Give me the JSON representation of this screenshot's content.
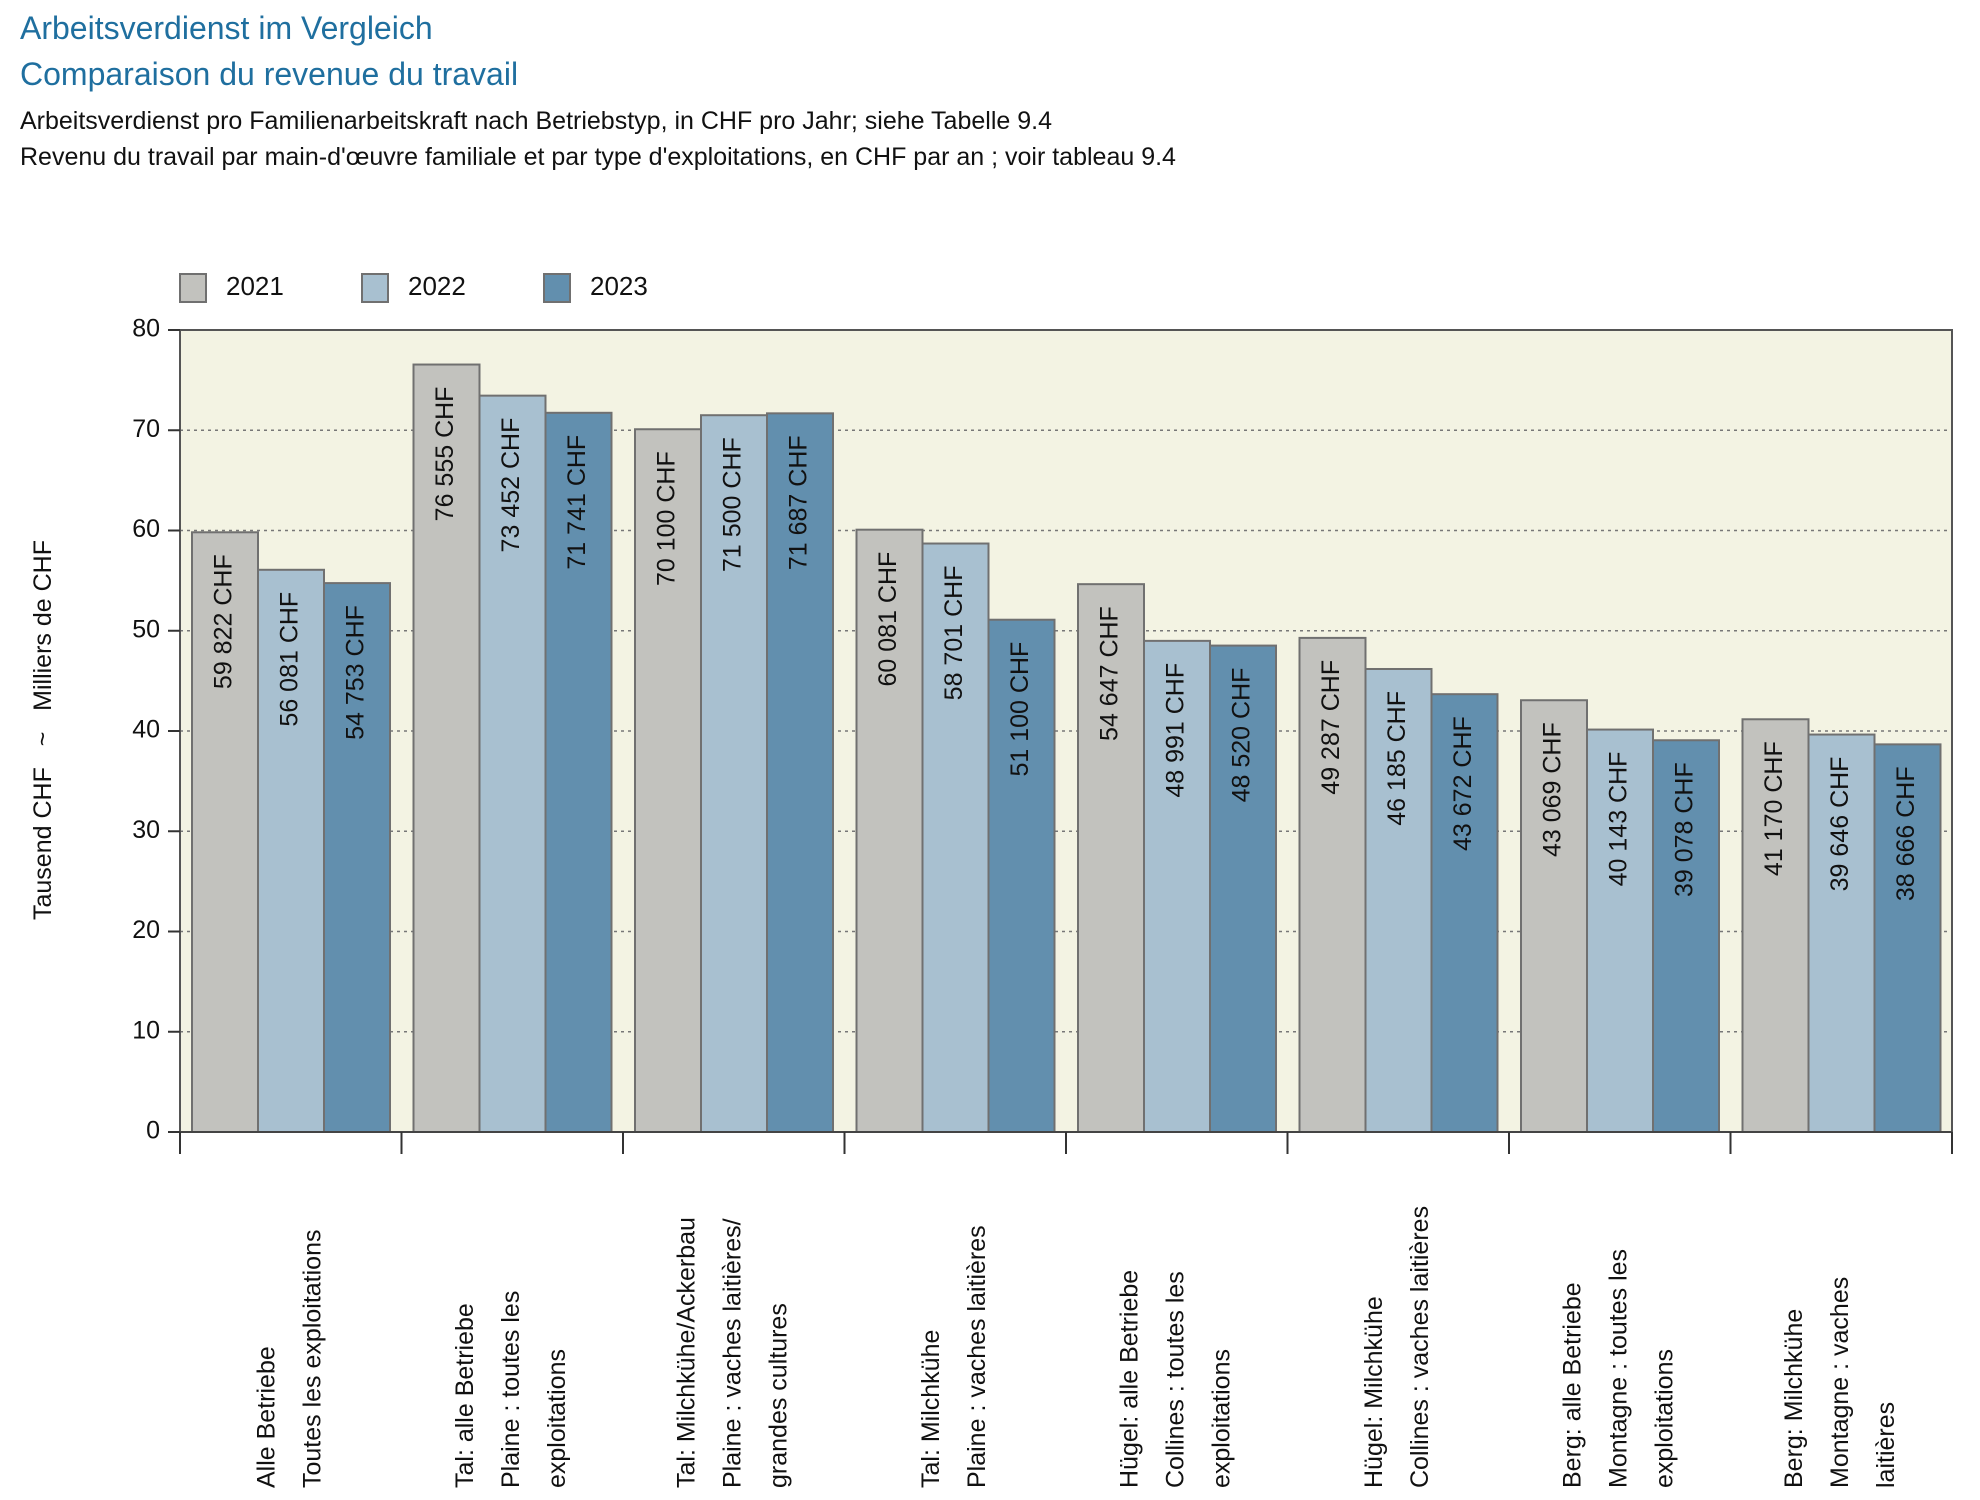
{
  "titles": {
    "line1": "Arbeitsverdienst im Vergleich",
    "line2": "Comparaison du revenue du travail"
  },
  "subtitles": {
    "line1": "Arbeitsverdienst pro Familienarbeitskraft nach Betriebstyp, in CHF pro Jahr; siehe Tabelle 9.4",
    "line2": "Revenu du travail par main-d'œuvre familiale et par type d'exploitations, en CHF par an ; voir tableau 9.4"
  },
  "colors": {
    "2021": "#c2c2be",
    "2022": "#a8c0d0",
    "2023": "#628fae",
    "plot_bg": "#f3f3e3",
    "title": "#1f6f9f"
  },
  "chart_data": {
    "type": "bar",
    "ylabel_de": "Tausend CHF",
    "ylabel_sep": "~",
    "ylabel_fr": "Milliers de CHF",
    "ylim": [
      0,
      80
    ],
    "yticks": [
      0,
      10,
      20,
      30,
      40,
      50,
      60,
      70,
      80
    ],
    "grid": "horizontal dotted",
    "legend_position": "top-left",
    "categories": [
      [
        "Alle Betriebe",
        "Toutes les exploitations"
      ],
      [
        "Tal: alle Betriebe",
        "Plaine : toutes les",
        "exploitations"
      ],
      [
        "Tal:  Milchkühe/Ackerbau",
        "Plaine : vaches laitières/",
        "grandes cultures"
      ],
      [
        "Tal:  Milchkühe",
        "Plaine : vaches laitières"
      ],
      [
        "Hügel: alle Betriebe",
        "Collines : toutes les",
        "exploitations"
      ],
      [
        "Hügel: Milchkühe",
        "Collines : vaches laitières"
      ],
      [
        "Berg: alle Betriebe",
        "Montagne : toutes les",
        "exploitations"
      ],
      [
        "Berg: Milchkühe",
        "Montagne : vaches",
        "laitières"
      ]
    ],
    "series": [
      {
        "name": "2021",
        "values": [
          59.822,
          76.555,
          70.1,
          60.081,
          54.647,
          49.287,
          43.069,
          41.17
        ],
        "labels": [
          "59 822 CHF",
          "76 555 CHF",
          "70 100 CHF",
          "60 081 CHF",
          "54 647 CHF",
          "49 287 CHF",
          "43 069 CHF",
          "41 170 CHF"
        ]
      },
      {
        "name": "2022",
        "values": [
          56.081,
          73.452,
          71.5,
          58.701,
          48.991,
          46.185,
          40.143,
          39.646
        ],
        "labels": [
          "56 081 CHF",
          "73 452 CHF",
          "71 500 CHF",
          "58 701 CHF",
          "48 991 CHF",
          "46 185 CHF",
          "40 143 CHF",
          "39 646 CHF"
        ]
      },
      {
        "name": "2023",
        "values": [
          54.753,
          71.741,
          71.687,
          51.1,
          48.52,
          43.672,
          39.078,
          38.666
        ],
        "labels": [
          "54 753 CHF",
          "71 741 CHF",
          "71 687 CHF",
          "51 100 CHF",
          "48 520 CHF",
          "43 672 CHF",
          "39 078 CHF",
          "38 666 CHF"
        ]
      }
    ]
  }
}
